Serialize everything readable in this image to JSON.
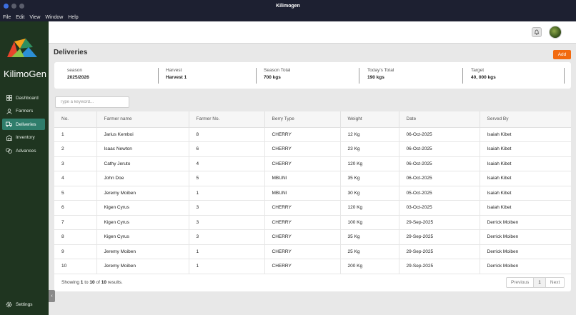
{
  "window": {
    "title": "Kilimogen"
  },
  "menu": [
    "File",
    "Edit",
    "View",
    "Window",
    "Help"
  ],
  "sidebar": {
    "brand": "KilimoGen",
    "items": [
      {
        "label": "Dashboard",
        "icon": "dashboard-icon"
      },
      {
        "label": "Farmers",
        "icon": "user-icon"
      },
      {
        "label": "Deliveries",
        "icon": "truck-icon",
        "active": true
      },
      {
        "label": "Inventory",
        "icon": "warehouse-icon"
      },
      {
        "label": "Advances",
        "icon": "coins-icon"
      }
    ],
    "settings": "Settings"
  },
  "page": {
    "title": "Deliveries",
    "add_label": "Add"
  },
  "stats": [
    {
      "label": "season",
      "value": "2025/2026"
    },
    {
      "label": "Harvest",
      "value": "Harvest 1"
    },
    {
      "label": "Season Total",
      "value": "700 kgs"
    },
    {
      "label": "Today's Total",
      "value": "190 kgs"
    },
    {
      "label": "Target",
      "value": "40, 000 kgs"
    }
  ],
  "search": {
    "placeholder": "Type a keyword..."
  },
  "table": {
    "columns": [
      "No.",
      "Farmer name",
      "Farmer No.",
      "Berry Type",
      "Weight",
      "Date",
      "Served By"
    ],
    "rows": [
      [
        "1",
        "Jarius Kemboi",
        "8",
        "CHERRY",
        "12 Kg",
        "06-Oct-2025",
        "Isaiah Kibet"
      ],
      [
        "2",
        "Isaac Newton",
        "6",
        "CHERRY",
        "23 Kg",
        "06-Oct-2025",
        "Isaiah Kibet"
      ],
      [
        "3",
        "Cathy Jeruto",
        "4",
        "CHERRY",
        "120 Kg",
        "06-Oct-2025",
        "Isaiah Kibet"
      ],
      [
        "4",
        "John Doe",
        "5",
        "MBUNI",
        "35 Kg",
        "06-Oct-2025",
        "Isaiah Kibet"
      ],
      [
        "5",
        "Jeremy Moiben",
        "1",
        "MBUNI",
        "30 Kg",
        "05-Oct-2025",
        "Isaiah Kibet"
      ],
      [
        "6",
        "Kigen Cyrus",
        "3",
        "CHERRY",
        "120 Kg",
        "03-Oct-2025",
        "Isaiah Kibet"
      ],
      [
        "7",
        "Kigen Cyrus",
        "3",
        "CHERRY",
        "100 Kg",
        "29-Sep-2025",
        "Derrick Moiben"
      ],
      [
        "8",
        "Kigen Cyrus",
        "3",
        "CHERRY",
        "35 Kg",
        "29-Sep-2025",
        "Derrick Moiben"
      ],
      [
        "9",
        "Jeremy Moiben",
        "1",
        "CHERRY",
        "25 Kg",
        "29-Sep-2025",
        "Derrick Moiben"
      ],
      [
        "10",
        "Jeremy Moiben",
        "1",
        "CHERRY",
        "200 Kg",
        "29-Sep-2025",
        "Derrick Moiben"
      ]
    ]
  },
  "pagination": {
    "showing": "Showing",
    "from": "1",
    "to_word": "to",
    "to": "10",
    "of_word": "of",
    "total": "10",
    "suffix": "results.",
    "previous": "Previous",
    "current": "1",
    "next": "Next"
  },
  "colors": {
    "sidebar": "#1f3520",
    "active": "#2f7d6b",
    "accent": "#f26a0f"
  }
}
